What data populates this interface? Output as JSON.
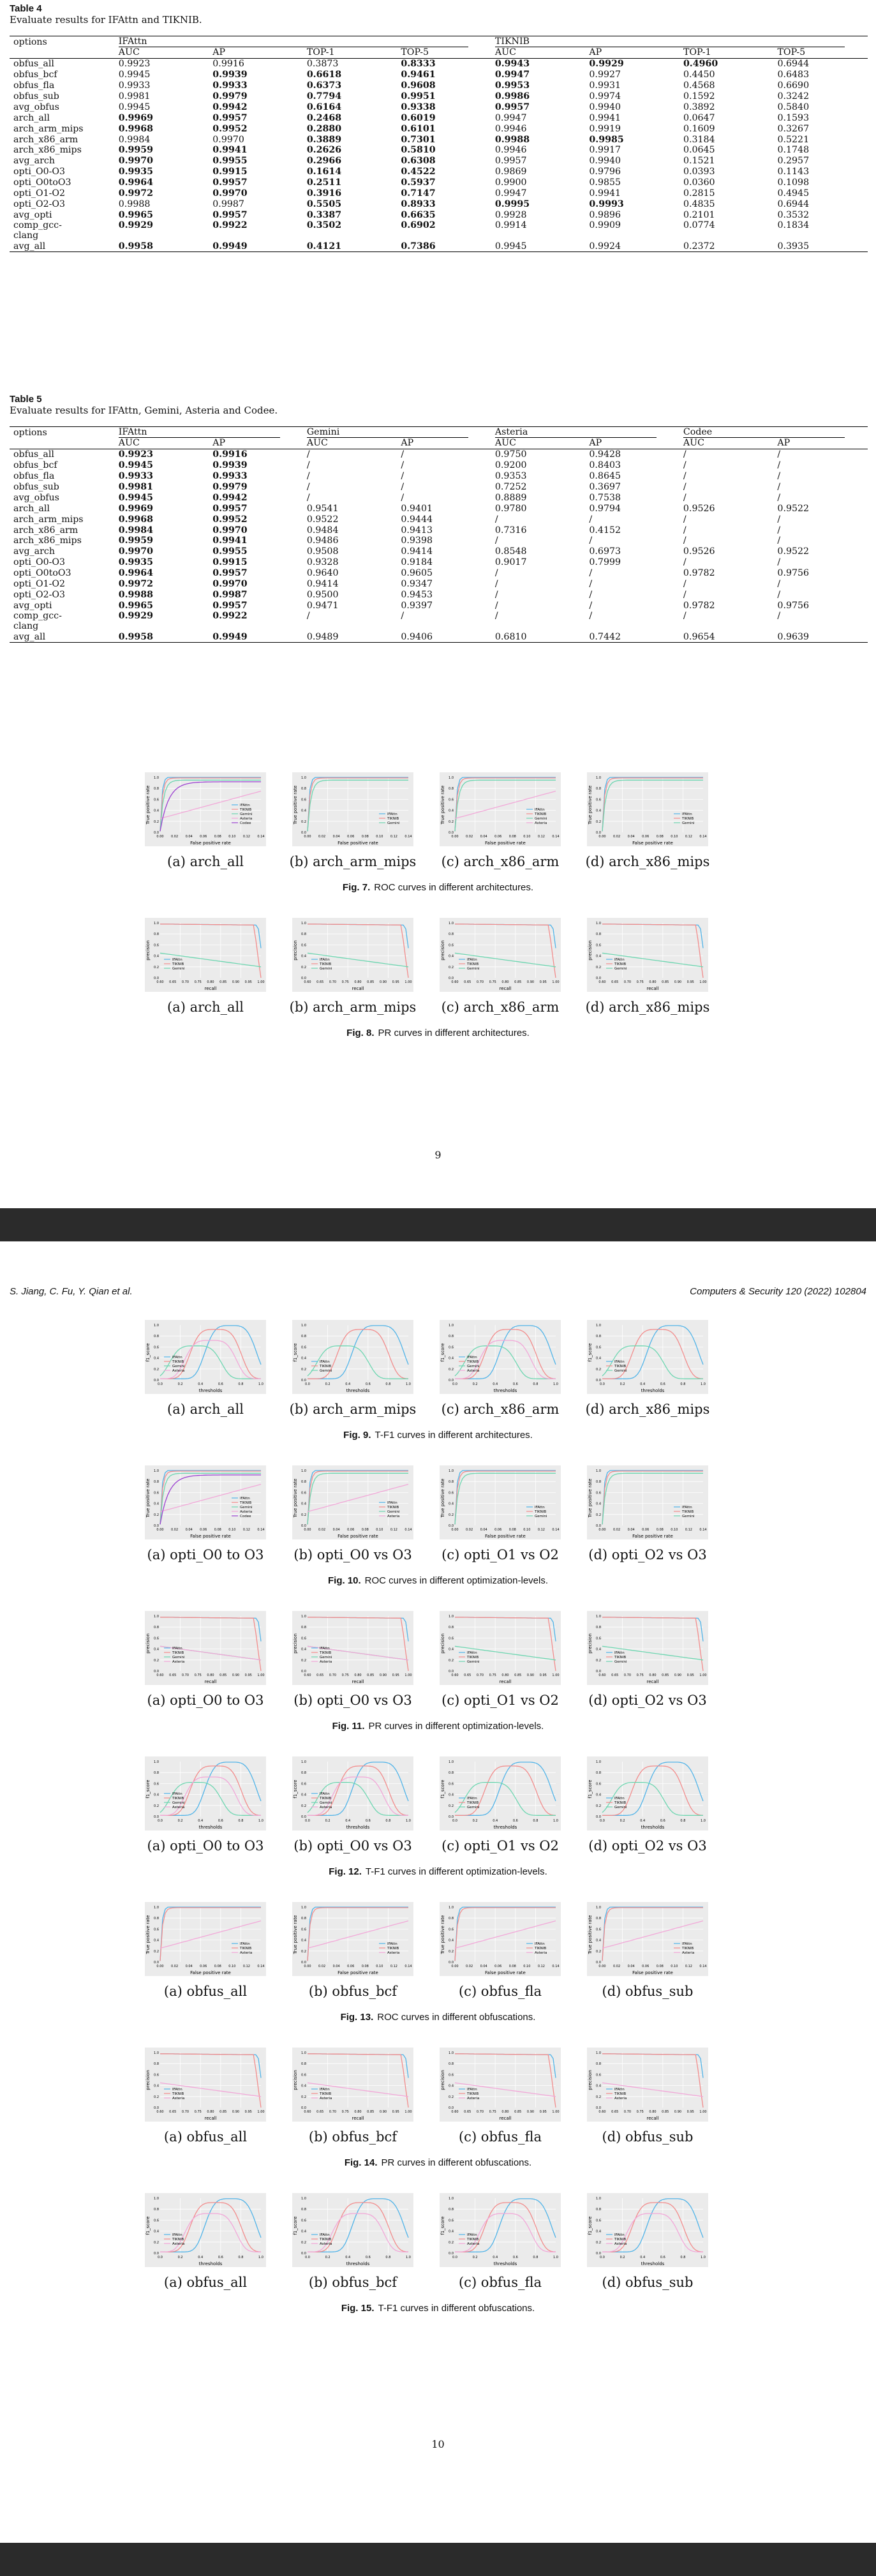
{
  "page1_number": "9",
  "page2_number": "10",
  "running_header": {
    "left": "S. Jiang, C. Fu, Y. Qian et al.",
    "right": "Computers & Security 120 (2022) 102804"
  },
  "table4": {
    "label": "Table 4",
    "caption": "Evaluate results for IFAttn and TIKNIB.",
    "options_header": "options",
    "groups": [
      "IFAttn",
      "TIKNIB"
    ],
    "subheaders": [
      "AUC",
      "AP",
      "TOP-1",
      "TOP-5",
      "AUC",
      "AP",
      "TOP-1",
      "TOP-5"
    ],
    "rows": [
      {
        "name": "obfus_all",
        "vals": [
          "0.9923",
          "0.9916",
          "0.3873",
          "0.8333",
          "0.9943",
          "0.9929",
          "0.4960",
          "0.6944"
        ],
        "bold": [
          0,
          0,
          0,
          1,
          1,
          1,
          1,
          0
        ]
      },
      {
        "name": "obfus_bcf",
        "vals": [
          "0.9945",
          "0.9939",
          "0.6618",
          "0.9461",
          "0.9947",
          "0.9927",
          "0.4450",
          "0.6483"
        ],
        "bold": [
          0,
          1,
          1,
          1,
          1,
          0,
          0,
          0
        ]
      },
      {
        "name": "obfus_fla",
        "vals": [
          "0.9933",
          "0.9933",
          "0.6373",
          "0.9608",
          "0.9953",
          "0.9931",
          "0.4568",
          "0.6690"
        ],
        "bold": [
          0,
          1,
          1,
          1,
          1,
          0,
          0,
          0
        ]
      },
      {
        "name": "obfus_sub",
        "vals": [
          "0.9981",
          "0.9979",
          "0.7794",
          "0.9951",
          "0.9986",
          "0.9974",
          "0.1592",
          "0.3242"
        ],
        "bold": [
          0,
          1,
          1,
          1,
          1,
          0,
          0,
          0
        ]
      },
      {
        "name": "avg_obfus",
        "vals": [
          "0.9945",
          "0.9942",
          "0.6164",
          "0.9338",
          "0.9957",
          "0.9940",
          "0.3892",
          "0.5840"
        ],
        "bold": [
          0,
          1,
          1,
          1,
          1,
          0,
          0,
          0
        ]
      },
      {
        "name": "arch_all",
        "vals": [
          "0.9969",
          "0.9957",
          "0.2468",
          "0.6019",
          "0.9947",
          "0.9941",
          "0.0647",
          "0.1593"
        ],
        "bold": [
          1,
          1,
          1,
          1,
          0,
          0,
          0,
          0
        ]
      },
      {
        "name": "arch_arm_mips",
        "vals": [
          "0.9968",
          "0.9952",
          "0.2880",
          "0.6101",
          "0.9946",
          "0.9919",
          "0.1609",
          "0.3267"
        ],
        "bold": [
          1,
          1,
          1,
          1,
          0,
          0,
          0,
          0
        ]
      },
      {
        "name": "arch_x86_arm",
        "vals": [
          "0.9984",
          "0.9970",
          "0.3889",
          "0.7301",
          "0.9988",
          "0.9985",
          "0.3184",
          "0.5221"
        ],
        "bold": [
          0,
          0,
          1,
          1,
          1,
          1,
          0,
          0
        ]
      },
      {
        "name": "arch_x86_mips",
        "vals": [
          "0.9959",
          "0.9941",
          "0.2626",
          "0.5810",
          "0.9946",
          "0.9917",
          "0.0645",
          "0.1748"
        ],
        "bold": [
          1,
          1,
          1,
          1,
          0,
          0,
          0,
          0
        ]
      },
      {
        "name": "avg_arch",
        "vals": [
          "0.9970",
          "0.9955",
          "0.2966",
          "0.6308",
          "0.9957",
          "0.9940",
          "0.1521",
          "0.2957"
        ],
        "bold": [
          1,
          1,
          1,
          1,
          0,
          0,
          0,
          0
        ]
      },
      {
        "name": "opti_O0-O3",
        "vals": [
          "0.9935",
          "0.9915",
          "0.1614",
          "0.4522",
          "0.9869",
          "0.9796",
          "0.0393",
          "0.1143"
        ],
        "bold": [
          1,
          1,
          1,
          1,
          0,
          0,
          0,
          0
        ]
      },
      {
        "name": "opti_O0toO3",
        "vals": [
          "0.9964",
          "0.9957",
          "0.2511",
          "0.5937",
          "0.9900",
          "0.9855",
          "0.0360",
          "0.1098"
        ],
        "bold": [
          1,
          1,
          1,
          1,
          0,
          0,
          0,
          0
        ]
      },
      {
        "name": "opti_O1-O2",
        "vals": [
          "0.9972",
          "0.9970",
          "0.3916",
          "0.7147",
          "0.9947",
          "0.9941",
          "0.2815",
          "0.4945"
        ],
        "bold": [
          1,
          1,
          1,
          1,
          0,
          0,
          0,
          0
        ]
      },
      {
        "name": "opti_O2-O3",
        "vals": [
          "0.9988",
          "0.9987",
          "0.5505",
          "0.8933",
          "0.9995",
          "0.9993",
          "0.4835",
          "0.6944"
        ],
        "bold": [
          0,
          0,
          1,
          1,
          1,
          1,
          0,
          0
        ]
      },
      {
        "name": "avg_opti",
        "vals": [
          "0.9965",
          "0.9957",
          "0.3387",
          "0.6635",
          "0.9928",
          "0.9896",
          "0.2101",
          "0.3532"
        ],
        "bold": [
          1,
          1,
          1,
          1,
          0,
          0,
          0,
          0
        ]
      },
      {
        "name": "comp_gcc-clang",
        "vals": [
          "0.9929",
          "0.9922",
          "0.3502",
          "0.6902",
          "0.9914",
          "0.9909",
          "0.0774",
          "0.1834"
        ],
        "bold": [
          1,
          1,
          1,
          1,
          0,
          0,
          0,
          0
        ]
      },
      {
        "name": "avg_all",
        "vals": [
          "0.9958",
          "0.9949",
          "0.4121",
          "0.7386",
          "0.9945",
          "0.9924",
          "0.2372",
          "0.3935"
        ],
        "bold": [
          1,
          1,
          1,
          1,
          0,
          0,
          0,
          0
        ]
      }
    ]
  },
  "table5": {
    "label": "Table 5",
    "caption": "Evaluate results for IFAttn, Gemini, Asteria and Codee.",
    "options_header": "options",
    "groups": [
      "IFAttn",
      "Gemini",
      "Asteria",
      "Codee"
    ],
    "subheaders": [
      "AUC",
      "AP",
      "AUC",
      "AP",
      "AUC",
      "AP",
      "AUC",
      "AP"
    ],
    "rows": [
      {
        "name": "obfus_all",
        "vals": [
          "0.9923",
          "0.9916",
          "/",
          "/",
          "0.9750",
          "0.9428",
          "/",
          "/"
        ],
        "bold": [
          1,
          1,
          0,
          0,
          0,
          0,
          0,
          0
        ]
      },
      {
        "name": "obfus_bcf",
        "vals": [
          "0.9945",
          "0.9939",
          "/",
          "/",
          "0.9200",
          "0.8403",
          "/",
          "/"
        ],
        "bold": [
          1,
          1,
          0,
          0,
          0,
          0,
          0,
          0
        ]
      },
      {
        "name": "obfus_fla",
        "vals": [
          "0.9933",
          "0.9933",
          "/",
          "/",
          "0.9353",
          "0.8645",
          "/",
          "/"
        ],
        "bold": [
          1,
          1,
          0,
          0,
          0,
          0,
          0,
          0
        ]
      },
      {
        "name": "obfus_sub",
        "vals": [
          "0.9981",
          "0.9979",
          "/",
          "/",
          "0.7252",
          "0.3697",
          "/",
          "/"
        ],
        "bold": [
          1,
          1,
          0,
          0,
          0,
          0,
          0,
          0
        ]
      },
      {
        "name": "avg_obfus",
        "vals": [
          "0.9945",
          "0.9942",
          "/",
          "/",
          "0.8889",
          "0.7538",
          "/",
          "/"
        ],
        "bold": [
          1,
          1,
          0,
          0,
          0,
          0,
          0,
          0
        ]
      },
      {
        "name": "arch_all",
        "vals": [
          "0.9969",
          "0.9957",
          "0.9541",
          "0.9401",
          "0.9780",
          "0.9794",
          "0.9526",
          "0.9522"
        ],
        "bold": [
          1,
          1,
          0,
          0,
          0,
          0,
          0,
          0
        ]
      },
      {
        "name": "arch_arm_mips",
        "vals": [
          "0.9968",
          "0.9952",
          "0.9522",
          "0.9444",
          "/",
          "/",
          "/",
          "/"
        ],
        "bold": [
          1,
          1,
          0,
          0,
          0,
          0,
          0,
          0
        ]
      },
      {
        "name": "arch_x86_arm",
        "vals": [
          "0.9984",
          "0.9970",
          "0.9484",
          "0.9413",
          "0.7316",
          "0.4152",
          "/",
          "/"
        ],
        "bold": [
          1,
          1,
          0,
          0,
          0,
          0,
          0,
          0
        ]
      },
      {
        "name": "arch_x86_mips",
        "vals": [
          "0.9959",
          "0.9941",
          "0.9486",
          "0.9398",
          "/",
          "/",
          "/",
          "/"
        ],
        "bold": [
          1,
          1,
          0,
          0,
          0,
          0,
          0,
          0
        ]
      },
      {
        "name": "avg_arch",
        "vals": [
          "0.9970",
          "0.9955",
          "0.9508",
          "0.9414",
          "0.8548",
          "0.6973",
          "0.9526",
          "0.9522"
        ],
        "bold": [
          1,
          1,
          0,
          0,
          0,
          0,
          0,
          0
        ]
      },
      {
        "name": "opti_O0-O3",
        "vals": [
          "0.9935",
          "0.9915",
          "0.9328",
          "0.9184",
          "0.9017",
          "0.7999",
          "/",
          "/"
        ],
        "bold": [
          1,
          1,
          0,
          0,
          0,
          0,
          0,
          0
        ]
      },
      {
        "name": "opti_O0toO3",
        "vals": [
          "0.9964",
          "0.9957",
          "0.9640",
          "0.9605",
          "/",
          "/",
          "0.9782",
          "0.9756"
        ],
        "bold": [
          1,
          1,
          0,
          0,
          0,
          0,
          0,
          0
        ]
      },
      {
        "name": "opti_O1-O2",
        "vals": [
          "0.9972",
          "0.9970",
          "0.9414",
          "0.9347",
          "/",
          "/",
          "/",
          "/"
        ],
        "bold": [
          1,
          1,
          0,
          0,
          0,
          0,
          0,
          0
        ]
      },
      {
        "name": "opti_O2-O3",
        "vals": [
          "0.9988",
          "0.9987",
          "0.9500",
          "0.9453",
          "/",
          "/",
          "/",
          "/"
        ],
        "bold": [
          1,
          1,
          0,
          0,
          0,
          0,
          0,
          0
        ]
      },
      {
        "name": "avg_opti",
        "vals": [
          "0.9965",
          "0.9957",
          "0.9471",
          "0.9397",
          "/",
          "/",
          "0.9782",
          "0.9756"
        ],
        "bold": [
          1,
          1,
          0,
          0,
          0,
          0,
          0,
          0
        ]
      },
      {
        "name": "comp_gcc-clang",
        "vals": [
          "0.9929",
          "0.9922",
          "/",
          "/",
          "/",
          "/",
          "/",
          "/"
        ],
        "bold": [
          1,
          1,
          0,
          0,
          0,
          0,
          0,
          0
        ]
      },
      {
        "name": "avg_all",
        "vals": [
          "0.9958",
          "0.9949",
          "0.9489",
          "0.9406",
          "0.6810",
          "0.7442",
          "0.9654",
          "0.9639"
        ],
        "bold": [
          1,
          1,
          0,
          0,
          0,
          0,
          0,
          0
        ]
      }
    ]
  },
  "series_colors": {
    "IFAttn": "#4fb3e8",
    "TIKNIB": "#f28b8b",
    "Gemini": "#6cd6b0",
    "Asteria": "#f2a7d8",
    "Codee": "#9b3fd1"
  },
  "figures": [
    {
      "label": "Fig. 7.",
      "caption": "ROC curves in different architectures.",
      "kind": "roc",
      "subfigs": [
        "(a) arch_all",
        "(b) arch_arm_mips",
        "(c) arch_x86_arm",
        "(d) arch_x86_mips"
      ],
      "legends": [
        [
          "IFAttn",
          "TIKNIB",
          "Gemini",
          "Asteria",
          "Codee"
        ],
        [
          "IFAttn",
          "TIKNIB",
          "Gemini"
        ],
        [
          "IFAttn",
          "TIKNIB",
          "Gemini",
          "Asteria"
        ],
        [
          "IFAttn",
          "TIKNIB",
          "Gemini"
        ]
      ]
    },
    {
      "label": "Fig. 8.",
      "caption": "PR curves in different architectures.",
      "kind": "pr",
      "subfigs": [
        "(a) arch_all",
        "(b) arch_arm_mips",
        "(c) arch_x86_arm",
        "(d) arch_x86_mips"
      ],
      "legends": [
        [
          "IFAttn",
          "TIKNIB",
          "Gemini"
        ],
        [
          "IFAttn",
          "TIKNIB",
          "Gemini"
        ],
        [
          "IFAttn",
          "TIKNIB",
          "Gemini"
        ],
        [
          "IFAttn",
          "TIKNIB",
          "Gemini"
        ]
      ]
    },
    {
      "label": "Fig. 9.",
      "caption": "T-F1 curves in different architectures.",
      "kind": "f1",
      "subfigs": [
        "(a) arch_all",
        "(b) arch_arm_mips",
        "(c) arch_x86_arm",
        "(d) arch_x86_mips"
      ],
      "legends": [
        [
          "IFAttn",
          "TIKNIB",
          "Gemini",
          "Asteria"
        ],
        [
          "IFAttn",
          "TIKNIB",
          "Gemini"
        ],
        [
          "IFAttn",
          "TIKNIB",
          "Gemini",
          "Asteria"
        ],
        [
          "IFAttn",
          "TIKNIB",
          "Gemini"
        ]
      ]
    },
    {
      "label": "Fig. 10.",
      "caption": "ROC curves in different optimization-levels.",
      "kind": "roc",
      "subfigs": [
        "(a) opti_O0 to O3",
        "(b) opti_O0 vs O3",
        "(c) opti_O1 vs O2",
        "(d) opti_O2 vs O3"
      ],
      "legends": [
        [
          "IFAttn",
          "TIKNIB",
          "Gemini",
          "Asteria",
          "Codee"
        ],
        [
          "IFAttn",
          "TIKNIB",
          "Gemini",
          "Asteria"
        ],
        [
          "IFAttn",
          "TIKNIB",
          "Gemini"
        ],
        [
          "IFAttn",
          "TIKNIB",
          "Gemini"
        ]
      ]
    },
    {
      "label": "Fig. 11.",
      "caption": "PR curves in different optimization-levels.",
      "kind": "pr",
      "subfigs": [
        "(a) opti_O0 to O3",
        "(b) opti_O0 vs O3",
        "(c) opti_O1 vs O2",
        "(d) opti_O2 vs O3"
      ],
      "legends": [
        [
          "IFAttn",
          "TIKNIB",
          "Gemini",
          "Asteria"
        ],
        [
          "IFAttn",
          "TIKNIB",
          "Gemini",
          "Asteria"
        ],
        [
          "IFAttn",
          "TIKNIB",
          "Gemini"
        ],
        [
          "IFAttn",
          "TIKNIB",
          "Gemini"
        ]
      ]
    },
    {
      "label": "Fig. 12.",
      "caption": "T-F1 curves in different optimization-levels.",
      "kind": "f1",
      "subfigs": [
        "(a) opti_O0 to O3",
        "(b) opti_O0 vs O3",
        "(c) opti_O1 vs O2",
        "(d) opti_O2 vs O3"
      ],
      "legends": [
        [
          "IFAttn",
          "TIKNIB",
          "Gemini",
          "Asteria"
        ],
        [
          "IFAttn",
          "TIKNIB",
          "Gemini",
          "Asteria"
        ],
        [
          "IFAttn",
          "TIKNIB",
          "Gemini"
        ],
        [
          "IFAttn",
          "TIKNIB",
          "Gemini"
        ]
      ]
    },
    {
      "label": "Fig. 13.",
      "caption": "ROC curves in different obfuscations.",
      "kind": "roc",
      "subfigs": [
        "(a) obfus_all",
        "(b) obfus_bcf",
        "(c) obfus_fla",
        "(d) obfus_sub"
      ],
      "legends": [
        [
          "IFAttn",
          "TIKNIB",
          "Asteria"
        ],
        [
          "IFAttn",
          "TIKNIB",
          "Asteria"
        ],
        [
          "IFAttn",
          "TIKNIB",
          "Asteria"
        ],
        [
          "IFAttn",
          "TIKNIB",
          "Asteria"
        ]
      ]
    },
    {
      "label": "Fig. 14.",
      "caption": "PR curves in different obfuscations.",
      "kind": "pr",
      "subfigs": [
        "(a) obfus_all",
        "(b) obfus_bcf",
        "(c) obfus_fla",
        "(d) obfus_sub"
      ],
      "legends": [
        [
          "IFAttn",
          "TIKNIB",
          "Asteria"
        ],
        [
          "IFAttn",
          "TIKNIB",
          "Asteria"
        ],
        [
          "IFAttn",
          "TIKNIB",
          "Asteria"
        ],
        [
          "IFAttn",
          "TIKNIB",
          "Asteria"
        ]
      ]
    },
    {
      "label": "Fig. 15.",
      "caption": "T-F1 curves in different obfuscations.",
      "kind": "f1",
      "subfigs": [
        "(a) obfus_all",
        "(b) obfus_bcf",
        "(c) obfus_fla",
        "(d) obfus_sub"
      ],
      "legends": [
        [
          "IFAttn",
          "TIKNIB",
          "Asteria"
        ],
        [
          "IFAttn",
          "TIKNIB",
          "Asteria"
        ],
        [
          "IFAttn",
          "TIKNIB",
          "Asteria"
        ],
        [
          "IFAttn",
          "TIKNIB",
          "Asteria"
        ]
      ]
    }
  ],
  "axis_text": {
    "roc": {
      "xlabel": "False positive rate",
      "ylabel": "True positive rate",
      "xticks": [
        "0.00",
        "0.02",
        "0.04",
        "0.06",
        "0.08",
        "0.10",
        "0.12",
        "0.14"
      ]
    },
    "pr": {
      "xlabel": "recall",
      "ylabel": "precision",
      "xticks": [
        "0.60",
        "0.65",
        "0.70",
        "0.75",
        "0.80",
        "0.85",
        "0.90",
        "0.95",
        "1.00"
      ]
    },
    "f1": {
      "xlabel": "thresholds",
      "ylabel": "f1_score",
      "xticks": [
        "0.0",
        "0.2",
        "0.4",
        "0.6",
        "0.8",
        "1.0"
      ]
    }
  }
}
